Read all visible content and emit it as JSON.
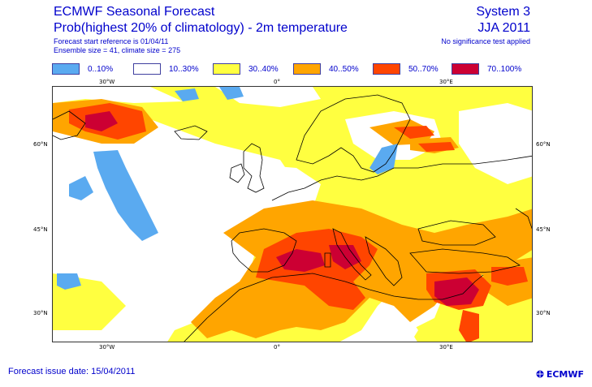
{
  "header": {
    "title": "ECMWF Seasonal Forecast",
    "subtitle": "Prob(highest 20% of climatology) - 2m temperature",
    "start_reference": "Forecast start reference is 01/04/11",
    "ensemble": "Ensemble size = 41, climate size = 275",
    "system": "System 3",
    "season": "JJA 2011",
    "significance": "No significance test applied"
  },
  "legend": [
    {
      "label": "0..10%",
      "color": "#5aaaf0"
    },
    {
      "label": "10..30%",
      "color": "#ffffff"
    },
    {
      "label": "30..40%",
      "color": "#ffff40"
    },
    {
      "label": "40..50%",
      "color": "#ffa500"
    },
    {
      "label": "50..70%",
      "color": "#ff4500"
    },
    {
      "label": "70..100%",
      "color": "#cc0033"
    }
  ],
  "axes": {
    "lon_top": [
      "30°W",
      "0°",
      "30°E"
    ],
    "lon_bottom": [
      "30°W",
      "0°",
      "30°E"
    ],
    "lat_left": [
      "60°N",
      "45°N",
      "30°N"
    ],
    "lat_right": [
      "60°N",
      "45°N",
      "30°N"
    ]
  },
  "footer": {
    "issue_date": "Forecast issue date: 15/04/2011",
    "logo_text": "ECMWF"
  },
  "colors": {
    "text": "#0000cc",
    "coast": "#000000"
  }
}
